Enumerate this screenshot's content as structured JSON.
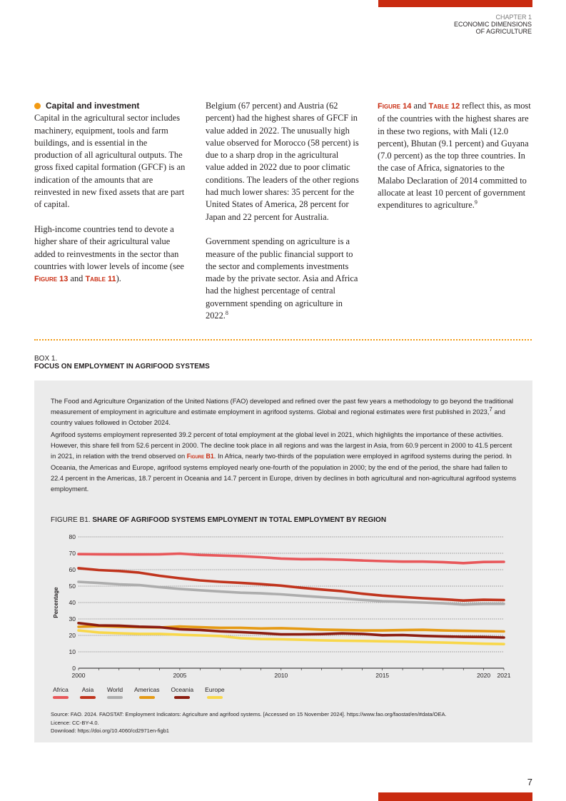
{
  "header": {
    "chapter_num": "CHAPTER 1",
    "chapter_title_1": "ECONOMIC DIMENSIONS",
    "chapter_title_2": "OF AGRICULTURE"
  },
  "page_number": "7",
  "colors": {
    "accent_red": "#c92b10",
    "accent_orange": "#f29a13",
    "box_bg": "#ebebeb"
  },
  "section": {
    "heading": "Capital and investment",
    "p1": "Capital in the agricultural sector includes machinery, equipment, tools and farm buildings, and is essential in the production of all agricultural outputs. The gross fixed capital formation (GFCF) is an indication of the amounts that are reinvested in new fixed assets that are part of capital.",
    "p2_pre": "High-income countries tend to devote a higher share of their agricultural value added to reinvestments in the sector than countries with lower levels of income (see ",
    "p2_ref1": "Figure 13",
    "p2_and": " and ",
    "p2_ref2": "Table 11",
    "p2_post": ").",
    "p3": "Belgium (67 percent) and Austria (62 percent) had the highest shares of GFCF in value added in 2022. The unusually high value observed for Morocco (58 percent) is due to a sharp drop in the agricultural value added in 2022 due to poor climatic conditions. The leaders of the other regions had much lower shares: 35 percent for the United States of America, 28 percent for Japan and 22 percent for Australia.",
    "p4": "Government spending on agriculture is a measure of the public financial support to the sector and complements investments made by the private sector. Asia and Africa had the highest percentage of central government spending on agriculture in 2022.",
    "p4_note": "8",
    "p5_ref1": "Figure 14",
    "p5_and": " and ",
    "p5_ref2": "Table 12",
    "p5_post": " reflect this, as most of the countries with the highest shares are in these two regions, with Mali (12.0 percent), Bhutan (9.1 percent) and Guyana (7.0 percent) as the top three countries. In the case of Africa, signatories to the Malabo Declaration of 2014 committed to allocate at least 10 percent of government expenditures to agriculture.",
    "p5_note": "9"
  },
  "box": {
    "label": "BOX 1.",
    "title": "FOCUS ON EMPLOYMENT IN AGRIFOOD SYSTEMS",
    "para1_a": "The Food and Agriculture Organization of the United Nations (FAO) developed and refined over the past few years a methodology to go beyond the traditional measurement of employment in agriculture and estimate employment in agrifood systems. Global and regional estimates were first published in 2023,",
    "para1_note": "7",
    "para1_b": " and country values followed in October 2024.",
    "para2_a": "Agrifood systems employment represented 39.2 percent of total employment at the global level in 2021, which highlights the importance of these activities. However, this share fell from 52.6 percent in 2000. The decline took place in all regions and was the largest in Asia, from 60.9 percent in 2000 to 41.5 percent in 2021, in relation with the trend observed on ",
    "para2_ref": "Figure B1",
    "para2_b": ". In Africa, nearly two-thirds of the population were employed in agrifood systems during the period. In Oceania, the Americas and Europe, agrifood systems employed nearly one-fourth of the population in 2000; by the end of the period, the share had fallen to 22.4 percent in the Americas, 18.7 percent in Oceania and 14.7 percent in Europe, driven by declines in both agricultural and non-agricultural agrifood systems employment.",
    "figure_prefix": "FIGURE B1. ",
    "figure_title": "SHARE OF AGRIFOOD SYSTEMS EMPLOYMENT IN TOTAL EMPLOYMENT BY REGION",
    "source": "Source: FAO. 2024. FAOSTAT: Employment Indicators: Agriculture and agrifood systems. [Accessed on 15 November 2024]. https://www.fao.org/faostat/en/#data/OEA.",
    "licence": "Licence: CC-BY-4.0.",
    "download": "Download: https://doi.org/10.4060/cd2971en-figb1"
  },
  "chart_data": {
    "type": "line",
    "ylabel": "Percentage",
    "xlabel": "",
    "ylim": [
      0,
      80
    ],
    "yticks": [
      0,
      10,
      20,
      30,
      40,
      50,
      60,
      70,
      80
    ],
    "xticks": [
      2000,
      2005,
      2010,
      2015,
      2020,
      2021
    ],
    "grid": "dotted horizontal",
    "legend": "bottom",
    "x": [
      2000,
      2001,
      2002,
      2003,
      2004,
      2005,
      2006,
      2007,
      2008,
      2009,
      2010,
      2011,
      2012,
      2013,
      2014,
      2015,
      2016,
      2017,
      2018,
      2019,
      2020,
      2021
    ],
    "series": [
      {
        "name": "Africa",
        "color": "#e8575a",
        "values": [
          69.5,
          69.4,
          69.3,
          69.3,
          69.4,
          69.8,
          69.0,
          68.6,
          68.2,
          67.6,
          66.8,
          66.4,
          66.4,
          66.1,
          65.6,
          65.2,
          64.9,
          64.9,
          64.6,
          64.0,
          64.7,
          64.8
        ]
      },
      {
        "name": "Asia",
        "color": "#c0341d",
        "values": [
          60.9,
          59.8,
          59.2,
          58.2,
          56.3,
          54.8,
          53.5,
          52.6,
          52.0,
          51.2,
          50.3,
          49.0,
          47.9,
          46.9,
          45.4,
          44.2,
          43.4,
          42.6,
          42.0,
          41.2,
          41.7,
          41.5
        ]
      },
      {
        "name": "World",
        "color": "#adadad",
        "values": [
          52.6,
          51.9,
          51.1,
          50.6,
          49.4,
          48.3,
          47.5,
          46.7,
          46.0,
          45.6,
          45.0,
          44.1,
          43.3,
          42.5,
          41.6,
          40.8,
          40.4,
          40.0,
          39.5,
          38.8,
          39.2,
          39.2
        ]
      },
      {
        "name": "Americas",
        "color": "#e59a14",
        "values": [
          25.2,
          25.6,
          25.2,
          25.0,
          24.8,
          25.4,
          25.0,
          24.6,
          24.6,
          24.2,
          24.4,
          24.0,
          23.5,
          23.3,
          23.0,
          23.0,
          23.2,
          23.4,
          23.0,
          22.8,
          22.6,
          22.4
        ]
      },
      {
        "name": "Oceania",
        "color": "#8c1d10",
        "values": [
          27.5,
          26.1,
          25.9,
          25.3,
          25.0,
          23.7,
          23.3,
          22.5,
          22.0,
          21.4,
          20.6,
          20.6,
          20.8,
          21.2,
          20.9,
          20.1,
          20.2,
          19.7,
          19.4,
          19.1,
          19.0,
          18.7
        ]
      },
      {
        "name": "Europe",
        "color": "#f8d74a",
        "values": [
          23.0,
          21.8,
          21.3,
          20.9,
          20.9,
          20.4,
          20.0,
          19.6,
          18.3,
          17.8,
          17.6,
          17.3,
          17.0,
          16.8,
          16.6,
          16.4,
          16.2,
          15.9,
          15.6,
          15.3,
          14.9,
          14.7
        ]
      }
    ]
  }
}
